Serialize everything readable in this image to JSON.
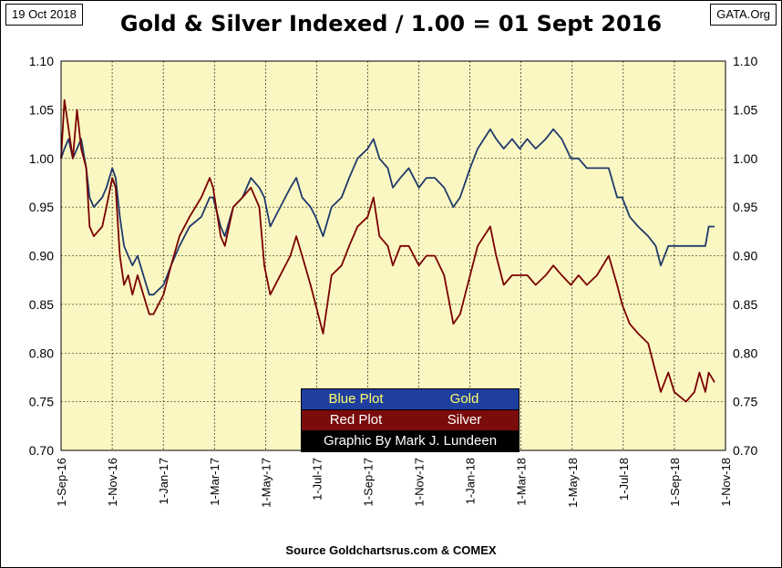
{
  "header": {
    "date": "19 Oct 2018",
    "title": "Gold & Silver Indexed / 1.00 = 01 Sept 2016",
    "brand": "GATA.Org"
  },
  "footer": {
    "source": "Source Goldchartsrus.com & COMEX"
  },
  "legend": {
    "rows": [
      {
        "left": "Blue Plot",
        "right": "Gold",
        "bg": "#1f3fa0",
        "fg": "#ffff66"
      },
      {
        "left": "Red Plot",
        "right": "Silver",
        "bg": "#7a0c0c",
        "fg": "#ffffff"
      },
      {
        "left": "Graphic By Mark J. Lundeen",
        "right": "",
        "bg": "#000000",
        "fg": "#ffffff"
      }
    ]
  },
  "colors": {
    "plot_bg": "#fbf7c2",
    "gold_line": "#1f3a6b",
    "silver_line": "#7a0000",
    "grid": "#000000"
  },
  "chart_data": {
    "type": "line",
    "title": "Gold & Silver Indexed / 1.00 = 01 Sept 2016",
    "xlabel": "",
    "ylabel": "",
    "x_ticks": [
      "1-Sep-16",
      "1-Nov-16",
      "1-Jan-17",
      "1-Mar-17",
      "1-May-17",
      "1-Jul-17",
      "1-Sep-17",
      "1-Nov-17",
      "1-Jan-18",
      "1-Mar-18",
      "1-May-18",
      "1-Jul-18",
      "1-Sep-18",
      "1-Nov-18"
    ],
    "y_ticks": [
      "0.70",
      "0.75",
      "0.80",
      "0.85",
      "0.90",
      "0.95",
      "1.00",
      "1.05",
      "1.10"
    ],
    "ylim": [
      0.7,
      1.1
    ],
    "xlim": [
      "2016-09-01",
      "2018-11-01"
    ],
    "grid": "horizontal and vertical",
    "series": [
      {
        "name": "Gold",
        "color": "#1f3a6b",
        "points": [
          [
            "2016-09-01",
            1.0
          ],
          [
            "2016-09-05",
            1.01
          ],
          [
            "2016-09-10",
            1.02
          ],
          [
            "2016-09-15",
            1.0
          ],
          [
            "2016-09-20",
            1.01
          ],
          [
            "2016-09-25",
            1.02
          ],
          [
            "2016-10-01",
            0.99
          ],
          [
            "2016-10-05",
            0.96
          ],
          [
            "2016-10-10",
            0.95
          ],
          [
            "2016-10-20",
            0.96
          ],
          [
            "2016-10-25",
            0.97
          ],
          [
            "2016-11-01",
            0.99
          ],
          [
            "2016-11-05",
            0.98
          ],
          [
            "2016-11-10",
            0.94
          ],
          [
            "2016-11-15",
            0.91
          ],
          [
            "2016-11-20",
            0.9
          ],
          [
            "2016-11-25",
            0.89
          ],
          [
            "2016-12-01",
            0.9
          ],
          [
            "2016-12-08",
            0.88
          ],
          [
            "2016-12-15",
            0.86
          ],
          [
            "2016-12-20",
            0.86
          ],
          [
            "2017-01-01",
            0.87
          ],
          [
            "2017-01-10",
            0.89
          ],
          [
            "2017-01-20",
            0.91
          ],
          [
            "2017-02-01",
            0.93
          ],
          [
            "2017-02-15",
            0.94
          ],
          [
            "2017-02-25",
            0.96
          ],
          [
            "2017-03-01",
            0.96
          ],
          [
            "2017-03-10",
            0.93
          ],
          [
            "2017-03-15",
            0.92
          ],
          [
            "2017-03-25",
            0.95
          ],
          [
            "2017-04-05",
            0.96
          ],
          [
            "2017-04-15",
            0.98
          ],
          [
            "2017-04-25",
            0.97
          ],
          [
            "2017-05-01",
            0.96
          ],
          [
            "2017-05-08",
            0.93
          ],
          [
            "2017-05-20",
            0.95
          ],
          [
            "2017-06-01",
            0.97
          ],
          [
            "2017-06-08",
            0.98
          ],
          [
            "2017-06-15",
            0.96
          ],
          [
            "2017-06-25",
            0.95
          ],
          [
            "2017-07-01",
            0.94
          ],
          [
            "2017-07-10",
            0.92
          ],
          [
            "2017-07-20",
            0.95
          ],
          [
            "2017-08-01",
            0.96
          ],
          [
            "2017-08-10",
            0.98
          ],
          [
            "2017-08-20",
            1.0
          ],
          [
            "2017-09-01",
            1.01
          ],
          [
            "2017-09-08",
            1.02
          ],
          [
            "2017-09-15",
            1.0
          ],
          [
            "2017-09-25",
            0.99
          ],
          [
            "2017-10-01",
            0.97
          ],
          [
            "2017-10-10",
            0.98
          ],
          [
            "2017-10-20",
            0.99
          ],
          [
            "2017-11-01",
            0.97
          ],
          [
            "2017-11-10",
            0.98
          ],
          [
            "2017-11-20",
            0.98
          ],
          [
            "2017-12-01",
            0.97
          ],
          [
            "2017-12-12",
            0.95
          ],
          [
            "2017-12-20",
            0.96
          ],
          [
            "2018-01-01",
            0.99
          ],
          [
            "2018-01-10",
            1.01
          ],
          [
            "2018-01-25",
            1.03
          ],
          [
            "2018-02-01",
            1.02
          ],
          [
            "2018-02-10",
            1.01
          ],
          [
            "2018-02-20",
            1.02
          ],
          [
            "2018-03-01",
            1.01
          ],
          [
            "2018-03-10",
            1.02
          ],
          [
            "2018-03-20",
            1.01
          ],
          [
            "2018-04-01",
            1.02
          ],
          [
            "2018-04-10",
            1.03
          ],
          [
            "2018-04-20",
            1.02
          ],
          [
            "2018-05-01",
            1.0
          ],
          [
            "2018-05-10",
            1.0
          ],
          [
            "2018-05-20",
            0.99
          ],
          [
            "2018-06-01",
            0.99
          ],
          [
            "2018-06-15",
            0.99
          ],
          [
            "2018-06-25",
            0.96
          ],
          [
            "2018-07-01",
            0.96
          ],
          [
            "2018-07-10",
            0.94
          ],
          [
            "2018-07-20",
            0.93
          ],
          [
            "2018-08-01",
            0.92
          ],
          [
            "2018-08-10",
            0.91
          ],
          [
            "2018-08-16",
            0.89
          ],
          [
            "2018-08-25",
            0.91
          ],
          [
            "2018-09-01",
            0.91
          ],
          [
            "2018-09-15",
            0.91
          ],
          [
            "2018-09-25",
            0.91
          ],
          [
            "2018-10-01",
            0.91
          ],
          [
            "2018-10-08",
            0.91
          ],
          [
            "2018-10-12",
            0.93
          ],
          [
            "2018-10-19",
            0.93
          ]
        ]
      },
      {
        "name": "Silver",
        "color": "#7a0000",
        "points": [
          [
            "2016-09-01",
            1.0
          ],
          [
            "2016-09-05",
            1.06
          ],
          [
            "2016-09-10",
            1.03
          ],
          [
            "2016-09-15",
            1.0
          ],
          [
            "2016-09-20",
            1.05
          ],
          [
            "2016-09-25",
            1.01
          ],
          [
            "2016-10-01",
            0.99
          ],
          [
            "2016-10-05",
            0.93
          ],
          [
            "2016-10-10",
            0.92
          ],
          [
            "2016-10-20",
            0.93
          ],
          [
            "2016-10-25",
            0.95
          ],
          [
            "2016-11-01",
            0.98
          ],
          [
            "2016-11-05",
            0.97
          ],
          [
            "2016-11-10",
            0.9
          ],
          [
            "2016-11-15",
            0.87
          ],
          [
            "2016-11-20",
            0.88
          ],
          [
            "2016-11-25",
            0.86
          ],
          [
            "2016-12-01",
            0.88
          ],
          [
            "2016-12-08",
            0.86
          ],
          [
            "2016-12-15",
            0.84
          ],
          [
            "2016-12-20",
            0.84
          ],
          [
            "2017-01-01",
            0.86
          ],
          [
            "2017-01-10",
            0.89
          ],
          [
            "2017-01-20",
            0.92
          ],
          [
            "2017-02-01",
            0.94
          ],
          [
            "2017-02-15",
            0.96
          ],
          [
            "2017-02-25",
            0.98
          ],
          [
            "2017-03-01",
            0.97
          ],
          [
            "2017-03-10",
            0.92
          ],
          [
            "2017-03-15",
            0.91
          ],
          [
            "2017-03-25",
            0.95
          ],
          [
            "2017-04-05",
            0.96
          ],
          [
            "2017-04-15",
            0.97
          ],
          [
            "2017-04-25",
            0.95
          ],
          [
            "2017-05-01",
            0.89
          ],
          [
            "2017-05-08",
            0.86
          ],
          [
            "2017-05-20",
            0.88
          ],
          [
            "2017-06-01",
            0.9
          ],
          [
            "2017-06-08",
            0.92
          ],
          [
            "2017-06-15",
            0.9
          ],
          [
            "2017-06-25",
            0.87
          ],
          [
            "2017-07-01",
            0.85
          ],
          [
            "2017-07-10",
            0.82
          ],
          [
            "2017-07-20",
            0.88
          ],
          [
            "2017-08-01",
            0.89
          ],
          [
            "2017-08-10",
            0.91
          ],
          [
            "2017-08-20",
            0.93
          ],
          [
            "2017-09-01",
            0.94
          ],
          [
            "2017-09-08",
            0.96
          ],
          [
            "2017-09-15",
            0.92
          ],
          [
            "2017-09-25",
            0.91
          ],
          [
            "2017-10-01",
            0.89
          ],
          [
            "2017-10-10",
            0.91
          ],
          [
            "2017-10-20",
            0.91
          ],
          [
            "2017-11-01",
            0.89
          ],
          [
            "2017-11-10",
            0.9
          ],
          [
            "2017-11-20",
            0.9
          ],
          [
            "2017-12-01",
            0.88
          ],
          [
            "2017-12-12",
            0.83
          ],
          [
            "2017-12-20",
            0.84
          ],
          [
            "2018-01-01",
            0.88
          ],
          [
            "2018-01-10",
            0.91
          ],
          [
            "2018-01-25",
            0.93
          ],
          [
            "2018-02-01",
            0.9
          ],
          [
            "2018-02-10",
            0.87
          ],
          [
            "2018-02-20",
            0.88
          ],
          [
            "2018-03-01",
            0.88
          ],
          [
            "2018-03-10",
            0.88
          ],
          [
            "2018-03-20",
            0.87
          ],
          [
            "2018-04-01",
            0.88
          ],
          [
            "2018-04-10",
            0.89
          ],
          [
            "2018-04-20",
            0.88
          ],
          [
            "2018-05-01",
            0.87
          ],
          [
            "2018-05-10",
            0.88
          ],
          [
            "2018-05-20",
            0.87
          ],
          [
            "2018-06-01",
            0.88
          ],
          [
            "2018-06-15",
            0.9
          ],
          [
            "2018-06-25",
            0.87
          ],
          [
            "2018-07-01",
            0.85
          ],
          [
            "2018-07-10",
            0.83
          ],
          [
            "2018-07-20",
            0.82
          ],
          [
            "2018-08-01",
            0.81
          ],
          [
            "2018-08-10",
            0.78
          ],
          [
            "2018-08-16",
            0.76
          ],
          [
            "2018-08-25",
            0.78
          ],
          [
            "2018-09-01",
            0.76
          ],
          [
            "2018-09-15",
            0.75
          ],
          [
            "2018-09-25",
            0.76
          ],
          [
            "2018-10-01",
            0.78
          ],
          [
            "2018-10-08",
            0.76
          ],
          [
            "2018-10-12",
            0.78
          ],
          [
            "2018-10-19",
            0.77
          ]
        ]
      }
    ]
  }
}
